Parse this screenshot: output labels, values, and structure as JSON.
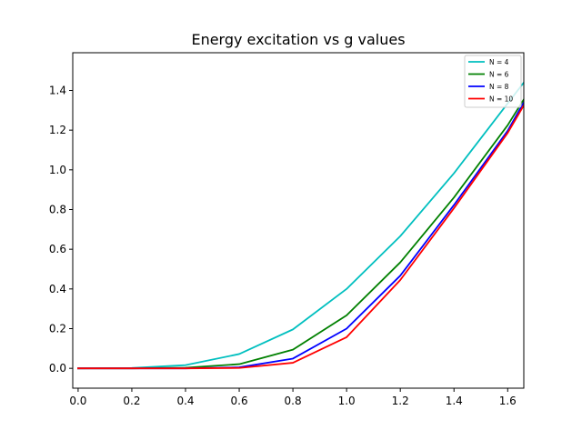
{
  "chart_data": {
    "type": "line",
    "title": "Energy excitation vs g values",
    "xlabel": "",
    "ylabel": "",
    "xlim": [
      -0.02,
      1.66
    ],
    "ylim": [
      -0.1,
      1.59
    ],
    "xticks": [
      0.0,
      0.2,
      0.4,
      0.6,
      0.8,
      1.0,
      1.2,
      1.4,
      1.6
    ],
    "xtick_labels": [
      "0.0",
      "0.2",
      "0.4",
      "0.6",
      "0.8",
      "1.0",
      "1.2",
      "1.4",
      "1.6"
    ],
    "yticks": [
      0.0,
      0.2,
      0.4,
      0.6,
      0.8,
      1.0,
      1.2,
      1.4
    ],
    "ytick_labels": [
      "0.0",
      "0.2",
      "0.4",
      "0.6",
      "0.8",
      "1.0",
      "1.2",
      "1.4"
    ],
    "grid": false,
    "legend_position": "top-right",
    "x": [
      0.0,
      0.2,
      0.4,
      0.6,
      0.8,
      1.0,
      1.2,
      1.4,
      1.6,
      1.66
    ],
    "series": [
      {
        "name": "N = 4",
        "color": "#00bfbf",
        "values": [
          0.0,
          0.002,
          0.016,
          0.072,
          0.196,
          0.4,
          0.666,
          0.983,
          1.335,
          1.44
        ]
      },
      {
        "name": "N = 6",
        "color": "#008000",
        "values": [
          0.0,
          0.0,
          0.003,
          0.021,
          0.094,
          0.267,
          0.534,
          0.861,
          1.225,
          1.355
        ]
      },
      {
        "name": "N = 8",
        "color": "#0000ff",
        "values": [
          0.0,
          0.0,
          0.0,
          0.005,
          0.049,
          0.2,
          0.467,
          0.823,
          1.197,
          1.34
        ]
      },
      {
        "name": "N = 10",
        "color": "#ff0000",
        "values": [
          0.0,
          0.0,
          0.0,
          0.002,
          0.028,
          0.157,
          0.445,
          0.807,
          1.186,
          1.325
        ]
      }
    ]
  }
}
